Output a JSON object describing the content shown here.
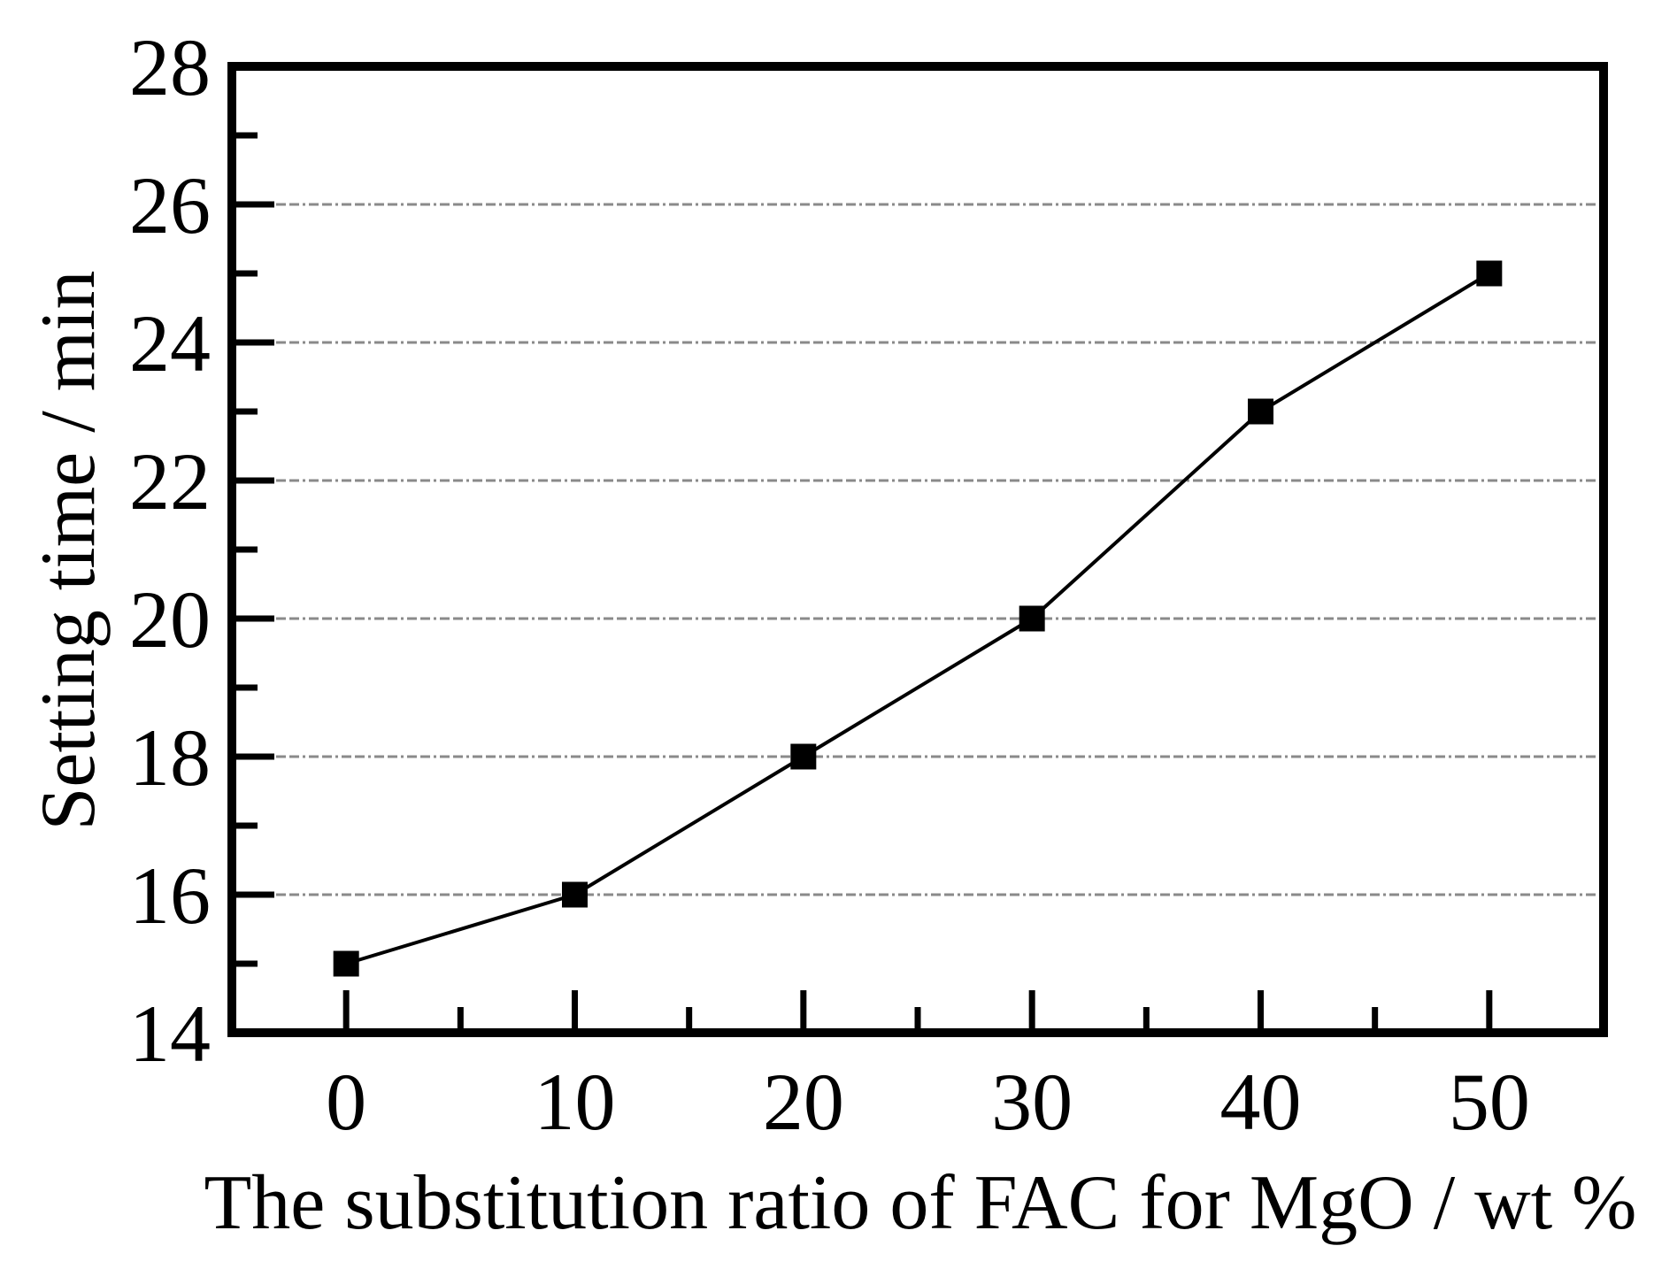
{
  "chart_data": {
    "type": "line",
    "title": "",
    "xlabel": "The substitution ratio of FAC for MgO / wt %",
    "ylabel": "Setting time / min",
    "x": [
      0,
      10,
      20,
      30,
      40,
      50
    ],
    "series": [
      {
        "name": "setting-time",
        "values": [
          15,
          16,
          18,
          20,
          23,
          25
        ],
        "marker": "filled-square",
        "color": "#000000"
      }
    ],
    "xlim": [
      -5,
      55
    ],
    "ylim": [
      14,
      28
    ],
    "x_major_ticks": [
      0,
      10,
      20,
      30,
      40,
      50
    ],
    "x_minor_ticks": [
      5,
      15,
      25,
      35,
      45
    ],
    "y_major_ticks": [
      14,
      16,
      18,
      20,
      22,
      24,
      26,
      28
    ],
    "y_minor_ticks": [
      15,
      17,
      19,
      21,
      23,
      25,
      27
    ],
    "y_gridlines": [
      16,
      18,
      20,
      22,
      24,
      26
    ],
    "grid_style": "horizontal-dash-dash-dot",
    "legend": null,
    "colors": {
      "axis": "#000000",
      "grid": "#8a8a8a",
      "line": "#000000",
      "marker": "#000000",
      "background": "#ffffff"
    }
  }
}
